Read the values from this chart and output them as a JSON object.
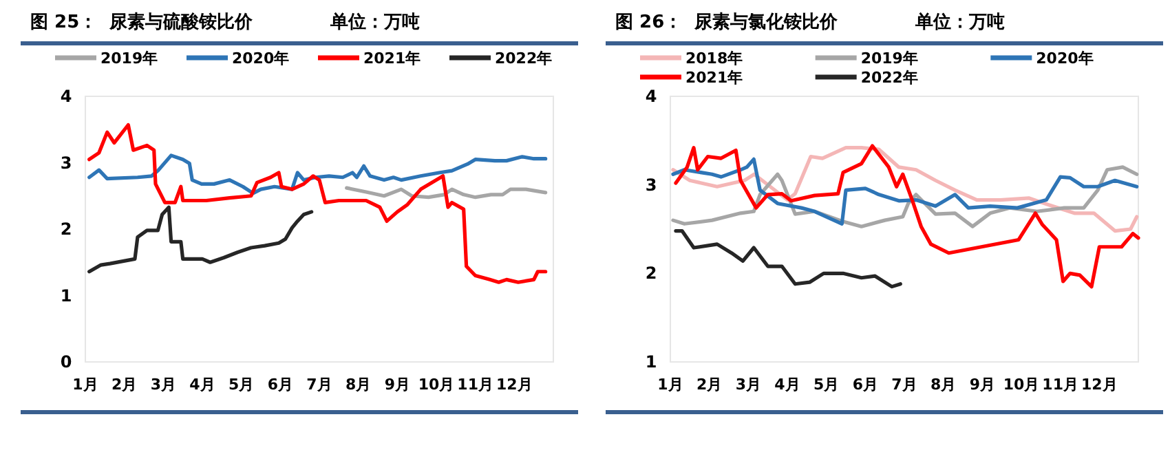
{
  "chart_data": [
    {
      "type": "line",
      "title": "图 25：  尿素与硫酸铵比价",
      "subtitle": "单位：万吨",
      "legend": "top",
      "xlim": [
        1,
        13
      ],
      "xticks": [
        {
          "value": 1,
          "label": "1月"
        },
        {
          "value": 2,
          "label": "2月"
        },
        {
          "value": 3,
          "label": "3月"
        },
        {
          "value": 4,
          "label": "4月"
        },
        {
          "value": 5,
          "label": "5月"
        },
        {
          "value": 6,
          "label": "6月"
        },
        {
          "value": 7,
          "label": "7月"
        },
        {
          "value": 8,
          "label": "8月"
        },
        {
          "value": 9,
          "label": "9月"
        },
        {
          "value": 10,
          "label": "10月"
        },
        {
          "value": 11,
          "label": "11月"
        },
        {
          "value": 12,
          "label": "12月"
        }
      ],
      "ylim": [
        0,
        4
      ],
      "yticks": [
        0,
        1,
        2,
        3,
        4
      ],
      "series": [
        {
          "name": "2019年",
          "color": "#a6a6a6",
          "x": [
            7.7,
            8.2,
            8.66,
            9.1,
            9.37,
            9.8,
            10.2,
            10.4,
            10.7,
            11.0,
            11.4,
            11.7,
            11.9,
            12.3,
            12.8
          ],
          "values": [
            2.62,
            2.56,
            2.5,
            2.6,
            2.5,
            2.48,
            2.52,
            2.6,
            2.52,
            2.48,
            2.52,
            2.52,
            2.6,
            2.6,
            2.55
          ]
        },
        {
          "name": "2020年",
          "color": "#2e75b6",
          "x": [
            1.1,
            1.35,
            1.56,
            2.34,
            2.7,
            2.86,
            3.2,
            3.5,
            3.67,
            3.74,
            3.98,
            4.3,
            4.7,
            5.04,
            5.3,
            5.5,
            5.85,
            6.3,
            6.44,
            6.6,
            6.9,
            7.25,
            7.6,
            7.85,
            7.96,
            8.14,
            8.3,
            8.66,
            8.9,
            9.1,
            9.6,
            10.07,
            10.4,
            10.8,
            11.0,
            11.5,
            11.8,
            12.2,
            12.5,
            12.8
          ],
          "values": [
            2.78,
            2.89,
            2.76,
            2.78,
            2.8,
            2.88,
            3.11,
            3.05,
            2.99,
            2.74,
            2.68,
            2.68,
            2.74,
            2.64,
            2.54,
            2.6,
            2.64,
            2.6,
            2.85,
            2.74,
            2.78,
            2.8,
            2.78,
            2.85,
            2.78,
            2.95,
            2.8,
            2.74,
            2.78,
            2.74,
            2.8,
            2.85,
            2.88,
            2.98,
            3.05,
            3.03,
            3.03,
            3.09,
            3.06,
            3.06
          ]
        },
        {
          "name": "2021年",
          "color": "#ff0000",
          "x": [
            1.1,
            1.35,
            1.56,
            1.74,
            2.1,
            2.23,
            2.58,
            2.76,
            2.8,
            3.04,
            3.3,
            3.45,
            3.5,
            4.1,
            4.7,
            5.25,
            5.4,
            5.75,
            5.96,
            6.03,
            6.3,
            6.6,
            6.84,
            7.0,
            7.15,
            7.5,
            8.2,
            8.55,
            8.73,
            9.0,
            9.26,
            9.6,
            10.17,
            10.3,
            10.4,
            10.7,
            10.77,
            11.0,
            11.37,
            11.6,
            11.8,
            12.1,
            12.5,
            12.6,
            12.8
          ],
          "values": [
            3.05,
            3.15,
            3.46,
            3.3,
            3.57,
            3.19,
            3.26,
            3.19,
            2.68,
            2.4,
            2.4,
            2.64,
            2.43,
            2.43,
            2.47,
            2.5,
            2.7,
            2.78,
            2.85,
            2.64,
            2.6,
            2.68,
            2.8,
            2.74,
            2.4,
            2.43,
            2.43,
            2.33,
            2.12,
            2.26,
            2.37,
            2.6,
            2.8,
            2.33,
            2.4,
            2.3,
            1.44,
            1.3,
            1.24,
            1.2,
            1.24,
            1.2,
            1.24,
            1.36,
            1.36
          ]
        },
        {
          "name": "2022年",
          "color": "#262626",
          "x": [
            1.1,
            1.4,
            1.63,
            2.27,
            2.34,
            2.58,
            2.86,
            2.97,
            3.14,
            3.2,
            3.45,
            3.5,
            4.0,
            4.2,
            4.55,
            4.9,
            5.25,
            5.6,
            5.96,
            6.13,
            6.3,
            6.44,
            6.6,
            6.8
          ],
          "values": [
            1.36,
            1.46,
            1.48,
            1.55,
            1.88,
            1.98,
            1.98,
            2.22,
            2.33,
            1.81,
            1.81,
            1.55,
            1.55,
            1.5,
            1.57,
            1.65,
            1.72,
            1.75,
            1.79,
            1.85,
            2.02,
            2.12,
            2.22,
            2.26
          ]
        }
      ]
    },
    {
      "type": "line",
      "title": "图 26：  尿素与氯化铵比价",
      "subtitle": "单位：万吨",
      "legend": "top",
      "xlim": [
        1,
        13
      ],
      "xticks": [
        {
          "value": 1,
          "label": "1月"
        },
        {
          "value": 2,
          "label": "2月"
        },
        {
          "value": 3,
          "label": "3月"
        },
        {
          "value": 4,
          "label": "4月"
        },
        {
          "value": 5,
          "label": "5月"
        },
        {
          "value": 6,
          "label": "6月"
        },
        {
          "value": 7,
          "label": "7月"
        },
        {
          "value": 8,
          "label": "8月"
        },
        {
          "value": 9,
          "label": "9月"
        },
        {
          "value": 10,
          "label": "10月"
        },
        {
          "value": 11,
          "label": "11月"
        },
        {
          "value": 12,
          "label": "12月"
        }
      ],
      "ylim": [
        1,
        4
      ],
      "yticks": [
        1,
        2,
        3,
        4
      ],
      "series": [
        {
          "name": "2018年",
          "color": "#f4b6b6",
          "x": [
            1.07,
            1.5,
            2.2,
            2.9,
            3.15,
            4.0,
            4.2,
            4.6,
            4.9,
            5.5,
            5.9,
            6.35,
            6.86,
            7.3,
            7.8,
            8.3,
            8.86,
            9.46,
            10.2,
            10.8,
            11.36,
            11.86,
            12.4,
            12.8,
            12.96
          ],
          "values": [
            3.17,
            3.05,
            2.98,
            3.05,
            3.12,
            2.83,
            2.9,
            3.32,
            3.3,
            3.42,
            3.42,
            3.4,
            3.2,
            3.17,
            3.05,
            2.94,
            2.83,
            2.83,
            2.85,
            2.76,
            2.68,
            2.68,
            2.48,
            2.5,
            2.64
          ]
        },
        {
          "name": "2019年",
          "color": "#a6a6a6",
          "x": [
            1.07,
            1.36,
            2.07,
            2.8,
            3.14,
            3.3,
            3.75,
            3.86,
            4.2,
            4.7,
            5.4,
            5.9,
            6.5,
            6.96,
            7.1,
            7.3,
            7.8,
            8.3,
            8.75,
            9.2,
            9.7,
            10.4,
            11.1,
            11.6,
            11.96,
            12.2,
            12.6,
            12.96
          ],
          "values": [
            2.6,
            2.56,
            2.6,
            2.68,
            2.7,
            2.89,
            3.12,
            3.05,
            2.67,
            2.7,
            2.59,
            2.53,
            2.6,
            2.64,
            2.79,
            2.89,
            2.67,
            2.68,
            2.53,
            2.68,
            2.74,
            2.7,
            2.74,
            2.74,
            2.94,
            3.17,
            3.2,
            3.12
          ]
        },
        {
          "name": "2020年",
          "color": "#2e75b6",
          "x": [
            1.07,
            1.36,
            2.07,
            2.3,
            2.8,
            2.96,
            3.14,
            3.3,
            3.75,
            4.36,
            4.7,
            5.4,
            5.5,
            6.0,
            6.35,
            6.86,
            7.3,
            7.8,
            8.3,
            8.64,
            9.2,
            9.9,
            10.64,
            11.0,
            11.25,
            11.6,
            11.96,
            12.4,
            12.96
          ],
          "values": [
            3.12,
            3.17,
            3.12,
            3.09,
            3.17,
            3.2,
            3.29,
            2.94,
            2.79,
            2.74,
            2.7,
            2.56,
            2.94,
            2.96,
            2.89,
            2.82,
            2.83,
            2.76,
            2.89,
            2.74,
            2.76,
            2.74,
            2.83,
            3.09,
            3.08,
            2.98,
            2.98,
            3.05,
            2.98
          ]
        },
        {
          "name": "2021年",
          "color": "#ff0000",
          "x": [
            1.14,
            1.43,
            1.6,
            1.7,
            1.96,
            2.3,
            2.68,
            2.8,
            3.2,
            3.5,
            3.86,
            4.1,
            4.7,
            5.3,
            5.43,
            5.9,
            6.18,
            6.6,
            6.8,
            6.96,
            7.2,
            7.43,
            7.68,
            8.14,
            9.93,
            10.36,
            10.54,
            10.9,
            11.07,
            11.25,
            11.5,
            11.8,
            12.0,
            12.57,
            12.86,
            13.0
          ],
          "values": [
            3.02,
            3.2,
            3.42,
            3.17,
            3.32,
            3.3,
            3.39,
            3.05,
            2.74,
            2.89,
            2.9,
            2.82,
            2.88,
            2.9,
            3.14,
            3.24,
            3.44,
            3.2,
            2.98,
            3.12,
            2.83,
            2.53,
            2.33,
            2.23,
            2.38,
            2.68,
            2.55,
            2.38,
            1.91,
            2.0,
            1.98,
            1.85,
            2.3,
            2.3,
            2.45,
            2.4
          ]
        },
        {
          "name": "2022年",
          "color": "#262626",
          "x": [
            1.14,
            1.3,
            1.6,
            2.2,
            2.57,
            2.86,
            3.14,
            3.5,
            3.86,
            4.2,
            4.57,
            4.93,
            5.43,
            5.9,
            6.25,
            6.68,
            6.9
          ],
          "values": [
            2.48,
            2.48,
            2.29,
            2.33,
            2.23,
            2.14,
            2.29,
            2.08,
            2.08,
            1.88,
            1.9,
            2.0,
            2.0,
            1.95,
            1.97,
            1.85,
            1.88
          ]
        }
      ]
    }
  ]
}
